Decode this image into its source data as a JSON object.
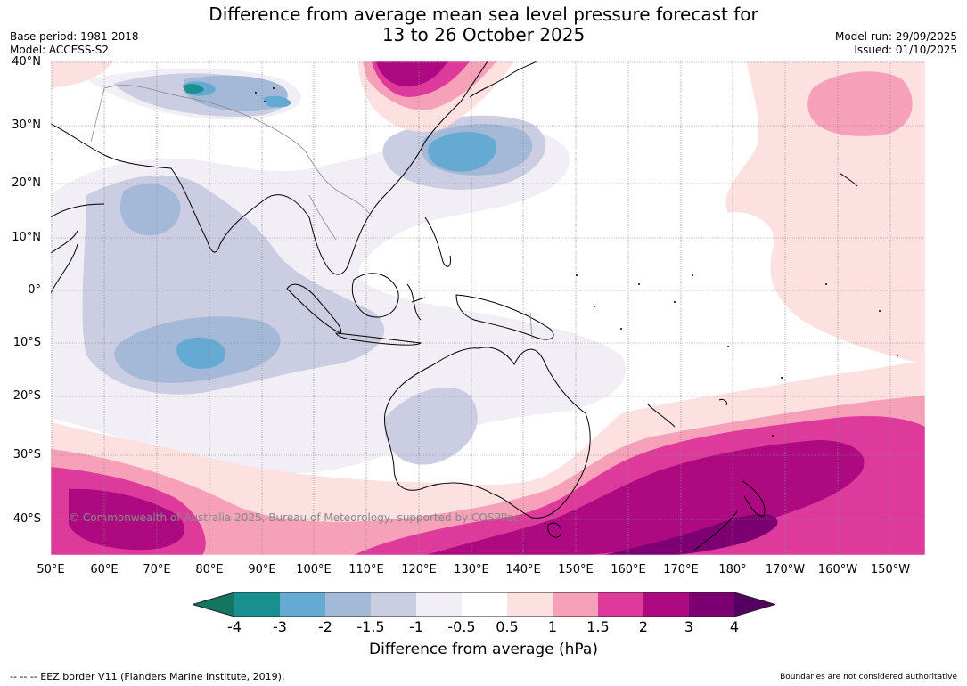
{
  "title_line1": "Difference from average mean sea level pressure forecast for",
  "title_line2": "13 to 26 October 2025",
  "base_period": "Base period: 1981-2018",
  "model": "Model: ACCESS-S2",
  "model_run": "Model run: 29/09/2025",
  "issued": "Issued: 01/10/2025",
  "lat_labels": [
    "40°N",
    "30°N",
    "20°N",
    "10°N",
    "0°",
    "10°S",
    "20°S",
    "30°S",
    "40°S"
  ],
  "lon_labels": [
    "50°E",
    "60°E",
    "70°E",
    "80°E",
    "90°E",
    "100°E",
    "110°E",
    "120°E",
    "130°E",
    "140°E",
    "150°E",
    "160°E",
    "170°E",
    "180°",
    "170°W",
    "160°W",
    "150°W"
  ],
  "copyright": "© Commonwealth of Australia 2025, Bureau of Meteorology, supported by COSPPac",
  "colorbar": {
    "ticks": [
      "-4",
      "-3",
      "-2",
      "-1.5",
      "-1",
      "-0.5",
      "0.5",
      "1",
      "1.5",
      "2",
      "3",
      "4"
    ],
    "colors": [
      "#1a8f8f",
      "#64aad2",
      "#a4b8d8",
      "#cbcde2",
      "#f2eef5",
      "#ffffff",
      "#fde0e0",
      "#f7a0ba",
      "#de3a9b",
      "#ad0a82",
      "#7d0073"
    ],
    "low_extend_color": "#137562",
    "high_extend_color": "#550060",
    "label": "Difference from average (hPa)"
  },
  "footer_left": "--  --  -- EEZ border V11 (Flanders Marine Institute, 2019).",
  "footer_right": "Boundaries are not considered authoritative"
}
